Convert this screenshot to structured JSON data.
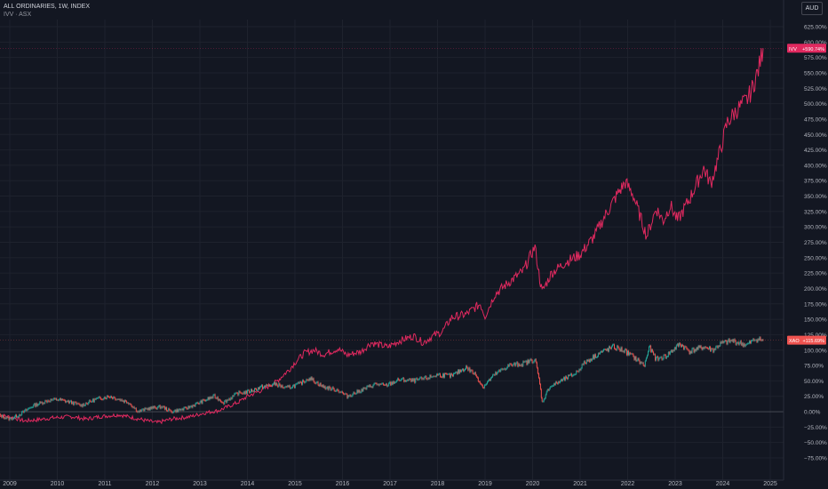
{
  "header": {
    "title": "ALL ORDINARIES, 1W, INDEX",
    "compare": "IVV · ASX",
    "currency": "AUD"
  },
  "colors": {
    "background": "#131722",
    "ivv": "#e0295f",
    "ord_up": "#26a69a",
    "ord_down": "#ef5350"
  },
  "chart_data": {
    "type": "line",
    "x_ticks": [
      "2009",
      "2010",
      "2011",
      "2012",
      "2013",
      "2014",
      "2015",
      "2016",
      "2017",
      "2018",
      "2019",
      "2020",
      "2021",
      "2022",
      "2023",
      "2024",
      "2025"
    ],
    "y_ticks": [
      "625.00%",
      "600.00%",
      "575.00%",
      "550.00%",
      "525.00%",
      "500.00%",
      "475.00%",
      "450.00%",
      "425.00%",
      "400.00%",
      "375.00%",
      "350.00%",
      "325.00%",
      "300.00%",
      "275.00%",
      "250.00%",
      "225.00%",
      "200.00%",
      "175.00%",
      "150.00%",
      "125.00%",
      "100.00%",
      "75.00%",
      "50.00%",
      "25.00%",
      "0.00%",
      "−25.00%",
      "−50.00%",
      "−75.00%"
    ],
    "ylim": [
      -75,
      625
    ],
    "series": [
      {
        "name": "IVV",
        "last_label": "+590.74%",
        "points": [
          [
            2008.75,
            -5
          ],
          [
            2009.1,
            -10
          ],
          [
            2009.3,
            -15
          ],
          [
            2009.6,
            -13
          ],
          [
            2009.9,
            -10
          ],
          [
            2010.3,
            -8
          ],
          [
            2010.6,
            -12
          ],
          [
            2010.9,
            -8
          ],
          [
            2011.3,
            -5
          ],
          [
            2011.6,
            -10
          ],
          [
            2011.9,
            -15
          ],
          [
            2012.1,
            -18
          ],
          [
            2012.4,
            -12
          ],
          [
            2012.8,
            -8
          ],
          [
            2013.1,
            -2
          ],
          [
            2013.4,
            2
          ],
          [
            2013.8,
            15
          ],
          [
            2014.0,
            25
          ],
          [
            2014.3,
            35
          ],
          [
            2014.6,
            48
          ],
          [
            2014.9,
            70
          ],
          [
            2015.0,
            80
          ],
          [
            2015.2,
            95
          ],
          [
            2015.4,
            100
          ],
          [
            2015.6,
            93
          ],
          [
            2015.9,
            102
          ],
          [
            2016.1,
            92
          ],
          [
            2016.4,
            98
          ],
          [
            2016.6,
            112
          ],
          [
            2016.8,
            108
          ],
          [
            2016.95,
            105
          ],
          [
            2017.2,
            115
          ],
          [
            2017.5,
            123
          ],
          [
            2017.7,
            112
          ],
          [
            2017.9,
            123
          ],
          [
            2018.1,
            130
          ],
          [
            2018.3,
            153
          ],
          [
            2018.6,
            158
          ],
          [
            2018.9,
            175
          ],
          [
            2019.0,
            155
          ],
          [
            2019.2,
            190
          ],
          [
            2019.5,
            210
          ],
          [
            2019.8,
            228
          ],
          [
            2020.05,
            268
          ],
          [
            2020.15,
            215
          ],
          [
            2020.2,
            195
          ],
          [
            2020.4,
            225
          ],
          [
            2020.7,
            243
          ],
          [
            2021.0,
            255
          ],
          [
            2021.3,
            285
          ],
          [
            2021.5,
            315
          ],
          [
            2021.8,
            355
          ],
          [
            2021.95,
            372
          ],
          [
            2022.1,
            355
          ],
          [
            2022.25,
            320
          ],
          [
            2022.4,
            285
          ],
          [
            2022.6,
            330
          ],
          [
            2022.75,
            310
          ],
          [
            2022.9,
            335
          ],
          [
            2023.05,
            310
          ],
          [
            2023.3,
            345
          ],
          [
            2023.6,
            395
          ],
          [
            2023.75,
            370
          ],
          [
            2023.9,
            410
          ],
          [
            2024.1,
            470
          ],
          [
            2024.3,
            490
          ],
          [
            2024.5,
            505
          ],
          [
            2024.6,
            520
          ],
          [
            2024.75,
            555
          ],
          [
            2024.85,
            590
          ]
        ]
      },
      {
        "name": "XAO",
        "last_label": "+115.69%",
        "points": [
          [
            2008.75,
            -5
          ],
          [
            2009.0,
            -12
          ],
          [
            2009.2,
            -5
          ],
          [
            2009.5,
            10
          ],
          [
            2009.8,
            18
          ],
          [
            2010.0,
            20
          ],
          [
            2010.3,
            15
          ],
          [
            2010.5,
            10
          ],
          [
            2010.8,
            20
          ],
          [
            2011.1,
            25
          ],
          [
            2011.3,
            20
          ],
          [
            2011.5,
            15
          ],
          [
            2011.7,
            0
          ],
          [
            2011.9,
            5
          ],
          [
            2012.2,
            8
          ],
          [
            2012.4,
            0
          ],
          [
            2012.7,
            5
          ],
          [
            2013.0,
            15
          ],
          [
            2013.3,
            25
          ],
          [
            2013.5,
            15
          ],
          [
            2013.8,
            30
          ],
          [
            2014.0,
            32
          ],
          [
            2014.3,
            40
          ],
          [
            2014.6,
            45
          ],
          [
            2014.8,
            38
          ],
          [
            2015.1,
            45
          ],
          [
            2015.3,
            55
          ],
          [
            2015.6,
            40
          ],
          [
            2015.9,
            35
          ],
          [
            2016.1,
            25
          ],
          [
            2016.4,
            35
          ],
          [
            2016.7,
            45
          ],
          [
            2016.9,
            42
          ],
          [
            2017.2,
            52
          ],
          [
            2017.5,
            50
          ],
          [
            2017.8,
            55
          ],
          [
            2018.0,
            60
          ],
          [
            2018.3,
            58
          ],
          [
            2018.6,
            72
          ],
          [
            2018.8,
            60
          ],
          [
            2018.95,
            40
          ],
          [
            2019.2,
            60
          ],
          [
            2019.5,
            75
          ],
          [
            2019.8,
            78
          ],
          [
            2020.05,
            85
          ],
          [
            2020.15,
            45
          ],
          [
            2020.2,
            15
          ],
          [
            2020.35,
            40
          ],
          [
            2020.6,
            50
          ],
          [
            2020.9,
            62
          ],
          [
            2021.1,
            80
          ],
          [
            2021.4,
            95
          ],
          [
            2021.7,
            105
          ],
          [
            2021.9,
            100
          ],
          [
            2022.1,
            90
          ],
          [
            2022.35,
            75
          ],
          [
            2022.45,
            105
          ],
          [
            2022.6,
            85
          ],
          [
            2022.8,
            90
          ],
          [
            2022.95,
            100
          ],
          [
            2023.1,
            110
          ],
          [
            2023.3,
            98
          ],
          [
            2023.6,
            105
          ],
          [
            2023.8,
            100
          ],
          [
            2023.95,
            110
          ],
          [
            2024.2,
            115
          ],
          [
            2024.5,
            108
          ],
          [
            2024.7,
            118
          ],
          [
            2024.85,
            116
          ]
        ]
      }
    ],
    "baseline": 0
  }
}
